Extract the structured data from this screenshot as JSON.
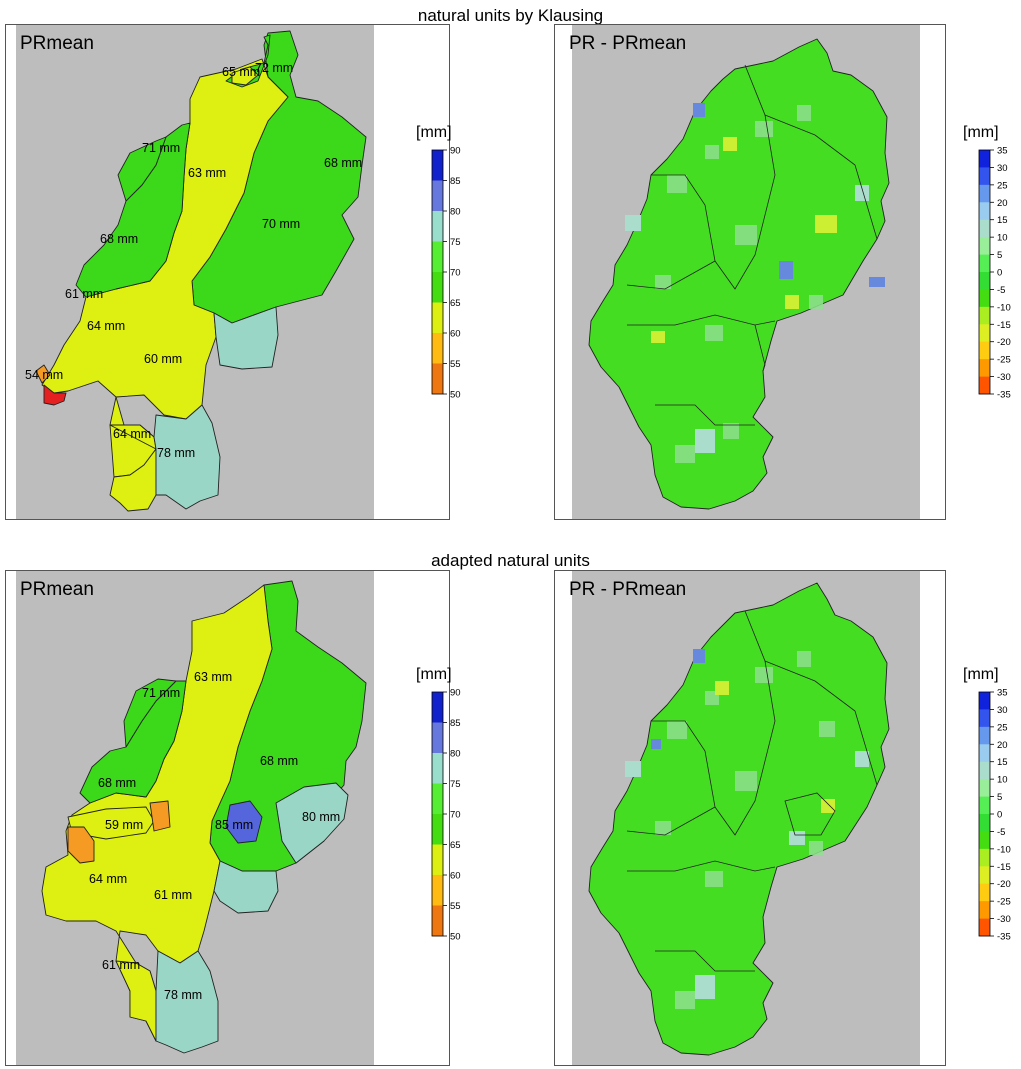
{
  "sections": [
    {
      "title": "natural units by Klausing",
      "left_panel": {
        "title": "PRmean",
        "legend": {
          "unit": "[mm]",
          "ticks": [
            "90",
            "85",
            "80",
            "75",
            "70",
            "65",
            "60",
            "55",
            "50"
          ]
        },
        "labels": [
          "65 mm",
          "72 mm",
          "71 mm",
          "63 mm",
          "68 mm",
          "70 mm",
          "68 mm",
          "61 mm",
          "64 mm",
          "60 mm",
          "54 mm",
          "64 mm",
          "78 mm"
        ]
      },
      "right_panel": {
        "title": "PR - PRmean",
        "legend": {
          "unit": "[mm]",
          "ticks": [
            "35",
            "30",
            "25",
            "20",
            "15",
            "10",
            "5",
            "0",
            "-5",
            "-10",
            "-15",
            "-20",
            "-25",
            "-30",
            "-35"
          ]
        }
      }
    },
    {
      "title": "adapted natural units",
      "left_panel": {
        "title": "PRmean",
        "legend": {
          "unit": "[mm]",
          "ticks": [
            "90",
            "85",
            "80",
            "75",
            "70",
            "65",
            "60",
            "55",
            "50"
          ]
        },
        "labels": [
          "71 mm",
          "63 mm",
          "68 mm",
          "68 mm",
          "59 mm",
          "85 mm",
          "80 mm",
          "64 mm",
          "61 mm",
          "61 mm",
          "78 mm"
        ]
      },
      "right_panel": {
        "title": "PR - PRmean",
        "legend": {
          "unit": "[mm]",
          "ticks": [
            "35",
            "30",
            "25",
            "20",
            "15",
            "10",
            "5",
            "0",
            "-5",
            "-10",
            "-15",
            "-20",
            "-25",
            "-30",
            "-35"
          ]
        }
      }
    }
  ],
  "colors": {
    "background_gray": "#bdbdbd",
    "scale_mean": [
      "#dd1111",
      "#ee7711",
      "#ffbb11",
      "#ddee11",
      "#44dd11",
      "#55ee33",
      "#99ddcc",
      "#6677dd",
      "#1122cc"
    ],
    "scale_diff": [
      "#ee0000",
      "#ff5500",
      "#ff9900",
      "#ffcc11",
      "#ddee22",
      "#aaee22",
      "#44dd11",
      "#33dd33",
      "#55ee55",
      "#99ee99",
      "#aaddcc",
      "#99ccee",
      "#6699ee",
      "#3355ee",
      "#1122dd"
    ],
    "region_yellow": "#ddf011",
    "region_green": "#3cd81a",
    "region_teal": "#9ad6c6",
    "region_blue": "#5566dd",
    "region_orange": "#f59a22",
    "region_red": "#e52020"
  }
}
